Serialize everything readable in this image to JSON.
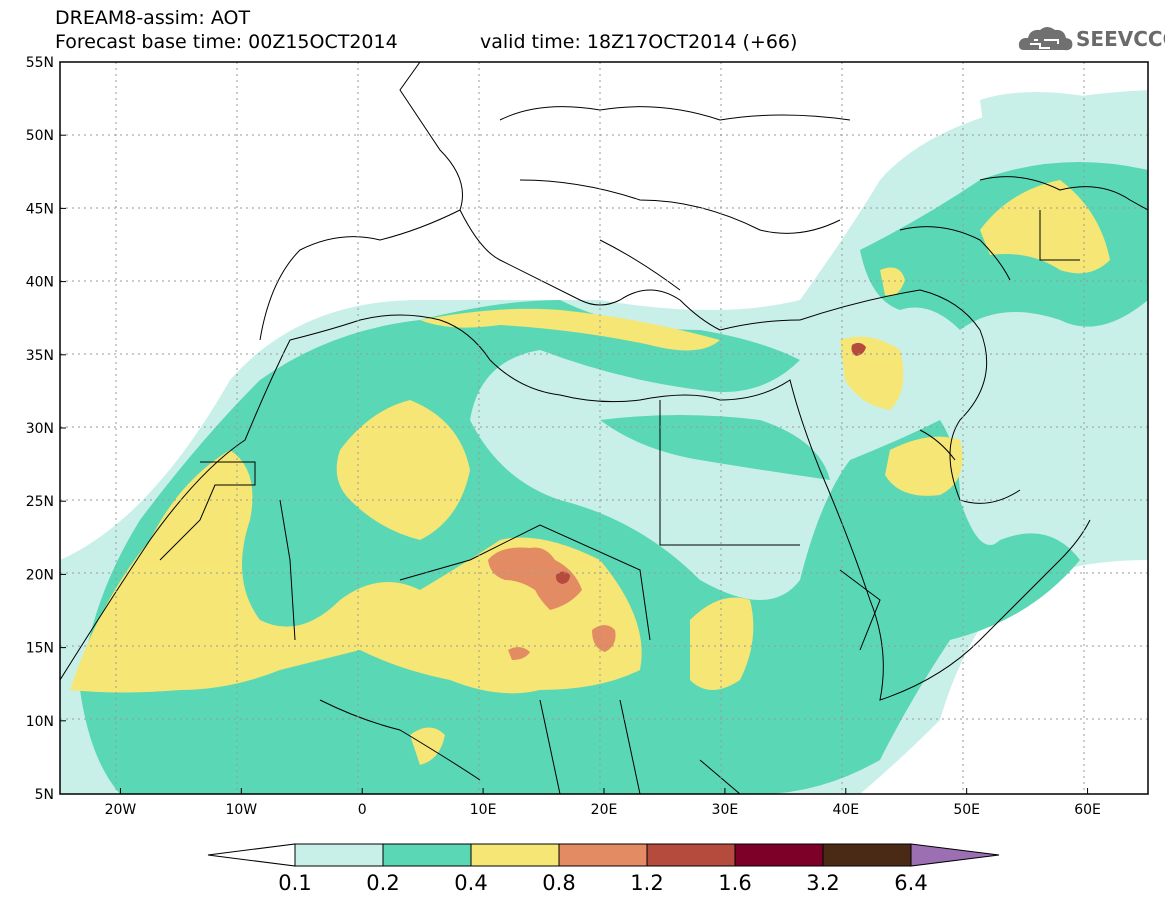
{
  "title": {
    "line1": "DREAM8-assim: AOT",
    "line2_base": "Forecast base time: 00Z15OCT2014",
    "line2_valid": "valid time: 18Z17OCT2014 (+66)"
  },
  "logo": {
    "text": "SEEVCCC",
    "icon": "cloud-logo-icon"
  },
  "axes": {
    "lat_labels": [
      "55N",
      "50N",
      "45N",
      "40N",
      "35N",
      "30N",
      "25N",
      "20N",
      "15N",
      "10N",
      "5N"
    ],
    "lon_labels": [
      "20W",
      "10W",
      "0",
      "10E",
      "20E",
      "30E",
      "40E",
      "50E",
      "60E"
    ],
    "lat_range": [
      5,
      55
    ],
    "lon_range": [
      -25,
      65
    ]
  },
  "colorbar": {
    "labels": [
      "0.1",
      "0.2",
      "0.4",
      "0.8",
      "1.2",
      "1.6",
      "3.2",
      "6.4"
    ],
    "colors": [
      "#c8f0e8",
      "#5ad7b4",
      "#f5e675",
      "#e38c64",
      "#b44b3c",
      "#7d0028",
      "#4a2a14",
      "#9b6fb2"
    ]
  },
  "map_colors": {
    "land_bg": "#ffffff",
    "level_01": "#c8f0e8",
    "level_02": "#5ad7b4",
    "level_04": "#f5e675",
    "level_08": "#e38c64",
    "level_12": "#b44b3c"
  }
}
